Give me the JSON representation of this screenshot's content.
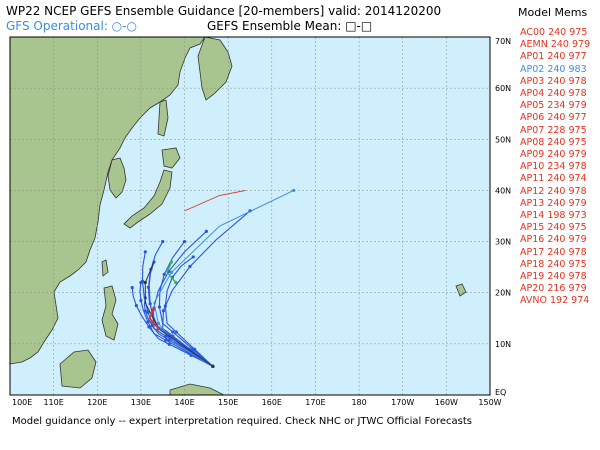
{
  "header": {
    "title": "WP22 NCEP GEFS Ensemble Guidance [20-members] valid: 2014120200",
    "gfs_operational": "GFS Operational: ○-○",
    "ensemble_mean": "GEFS Ensemble Mean: □-□"
  },
  "legend": {
    "title": "Model Mems",
    "items": [
      {
        "label": "AC00 240 975",
        "color": "#e8321e"
      },
      {
        "label": "AEMN 240 979",
        "color": "#e8321e"
      },
      {
        "label": "AP01 240 977",
        "color": "#e8321e"
      },
      {
        "label": "AP02 240 983",
        "color": "#3a8ee6"
      },
      {
        "label": "AP03 240 978",
        "color": "#e8321e"
      },
      {
        "label": "AP04 240 978",
        "color": "#e8321e"
      },
      {
        "label": "AP05 234 979",
        "color": "#e8321e"
      },
      {
        "label": "AP06 240 977",
        "color": "#e8321e"
      },
      {
        "label": "AP07 228 975",
        "color": "#e8321e"
      },
      {
        "label": "AP08 240 975",
        "color": "#e8321e"
      },
      {
        "label": "AP09 240 979",
        "color": "#e8321e"
      },
      {
        "label": "AP10 234 978",
        "color": "#e8321e"
      },
      {
        "label": "AP11 240 974",
        "color": "#e8321e"
      },
      {
        "label": "AP12 240 978",
        "color": "#e8321e"
      },
      {
        "label": "AP13 240 979",
        "color": "#e8321e"
      },
      {
        "label": "AP14 198 973",
        "color": "#e8321e"
      },
      {
        "label": "AP15 240 975",
        "color": "#e8321e"
      },
      {
        "label": "AP16 240 979",
        "color": "#e8321e"
      },
      {
        "label": "AP17 240 978",
        "color": "#e8321e"
      },
      {
        "label": "AP18 240 975",
        "color": "#e8321e"
      },
      {
        "label": "AP19 240 978",
        "color": "#e8321e"
      },
      {
        "label": "AP20 216 979",
        "color": "#e8321e"
      },
      {
        "label": "AVNO 192 974",
        "color": "#e8321e"
      }
    ]
  },
  "map": {
    "lon_labels": [
      "100E",
      "110E",
      "120E",
      "130E",
      "140E",
      "150E",
      "160E",
      "170E",
      "180",
      "170W",
      "160W",
      "150W"
    ],
    "lat_labels": [
      "EQ",
      "10N",
      "20N",
      "30N",
      "40N",
      "50N",
      "60N",
      "70N"
    ],
    "lon_range": [
      100,
      210
    ],
    "lat_range": [
      0,
      70
    ],
    "ocean_color": "#cfeffc",
    "land_color": "#a9c58f",
    "track_color_ensemble": "#2a55e0",
    "track_color_operational": "#3a8ee6",
    "track_color_mean": "#333333"
  },
  "footer": "Model guidance only -- expert interpretation required.  Check NHC or JTWC Official Forecasts"
}
